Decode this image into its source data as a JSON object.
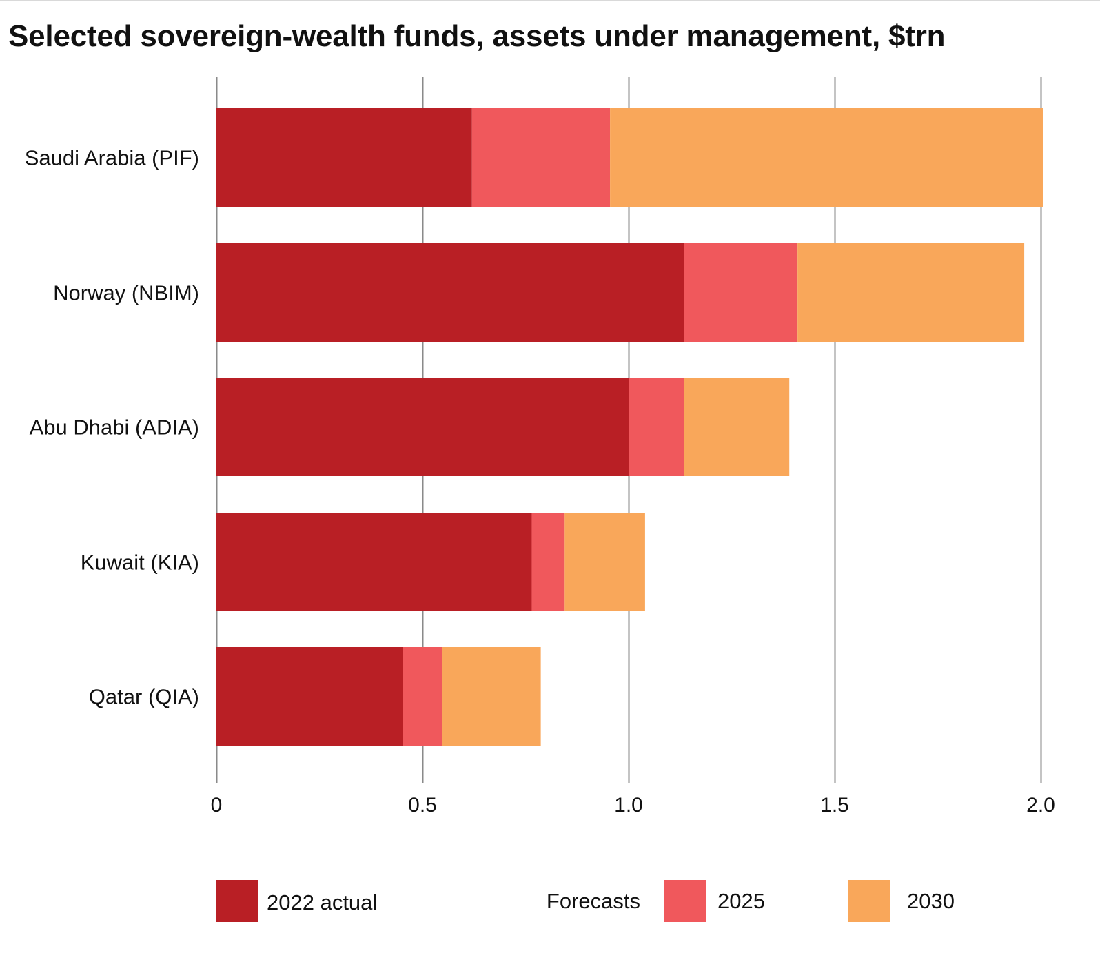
{
  "chart_data": {
    "type": "bar",
    "orientation": "horizontal",
    "stacked": true,
    "title": "Selected sovereign-wealth funds, assets under management, $trn",
    "xlabel": "",
    "ylabel": "",
    "xlim": [
      0,
      2.0
    ],
    "ticks": [
      0,
      0.5,
      1.0,
      1.5,
      2.0
    ],
    "tick_labels": [
      "0",
      "0.5",
      "1.0",
      "1.5",
      "2.0"
    ],
    "grid": true,
    "legend_position": "bottom",
    "legend_group_label": "Forecasts",
    "categories": [
      "Saudi Arabia (PIF)",
      "Norway (NBIM)",
      "Abu Dhabi (ADIA)",
      "Kuwait (KIA)",
      "Qatar (QIA)"
    ],
    "series": [
      {
        "name": "2022 actual",
        "color": "#b91f25",
        "values": [
          0.62,
          1.135,
          1.0,
          0.765,
          0.452
        ]
      },
      {
        "name": "2025",
        "color": "#f0585c",
        "values": [
          0.335,
          0.275,
          0.135,
          0.08,
          0.095
        ]
      },
      {
        "name": "2030",
        "color": "#f9a75a",
        "values": [
          1.05,
          0.55,
          0.255,
          0.195,
          0.24
        ]
      }
    ]
  }
}
